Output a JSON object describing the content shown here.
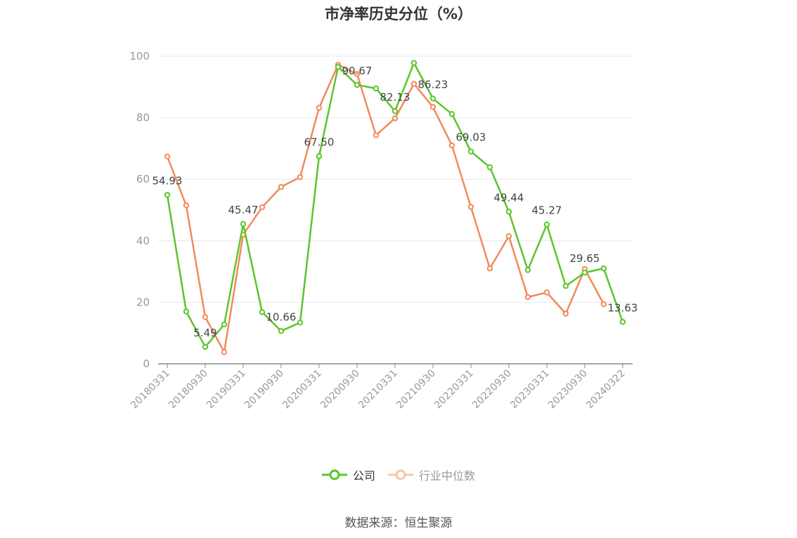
{
  "title": "市净率历史分位（%）",
  "source": "数据来源：恒生聚源",
  "colors": {
    "company": "#5cc52a",
    "industry": "#f28a5a",
    "grid": "#e6e9f0",
    "axis": "#999999"
  },
  "chart_data": {
    "type": "line",
    "title": "市净率历史分位（%）",
    "ylim": [
      0,
      100
    ],
    "yticks": [
      0,
      20,
      40,
      60,
      80,
      100
    ],
    "grid": true,
    "legend_position": "bottom",
    "x_tick_labels": [
      "20180331",
      "20180930",
      "20190331",
      "20190930",
      "20200331",
      "20200930",
      "20210331",
      "20210930",
      "20220331",
      "20220930",
      "20230331",
      "20230930",
      "20240322"
    ],
    "x": [
      "20180331",
      "20180630",
      "20180930",
      "20181231",
      "20190331",
      "20190630",
      "20190930",
      "20191231",
      "20200331",
      "20200630",
      "20200930",
      "20201231",
      "20210331",
      "20210630",
      "20210930",
      "20211231",
      "20220331",
      "20220630",
      "20220930",
      "20221231",
      "20230331",
      "20230630",
      "20230930",
      "20231231",
      "20240322"
    ],
    "series": [
      {
        "name": "公司",
        "values": [
          54.93,
          17.0,
          5.49,
          12.8,
          45.47,
          16.8,
          10.66,
          13.4,
          67.5,
          96.5,
          90.67,
          89.5,
          82.13,
          97.8,
          86.23,
          81.2,
          69.03,
          63.9,
          49.44,
          30.5,
          45.27,
          25.3,
          29.65,
          31.0,
          13.63
        ],
        "labels": [
          "54.93",
          "",
          "5.49",
          "",
          "45.47",
          "",
          "10.66",
          "",
          "67.50",
          "",
          "90.67",
          "",
          "82.13",
          "",
          "86.23",
          "",
          "69.03",
          "",
          "49.44",
          "",
          "45.27",
          "",
          "29.65",
          "",
          "13.63"
        ]
      },
      {
        "name": "行业中位数",
        "values": [
          67.4,
          51.5,
          15.2,
          3.8,
          42.0,
          50.9,
          57.5,
          60.7,
          83.2,
          97.2,
          94.2,
          74.3,
          79.8,
          91.0,
          83.5,
          71.0,
          51.0,
          31.0,
          41.5,
          21.7,
          23.2,
          16.3,
          30.8,
          19.4,
          null
        ]
      }
    ]
  }
}
